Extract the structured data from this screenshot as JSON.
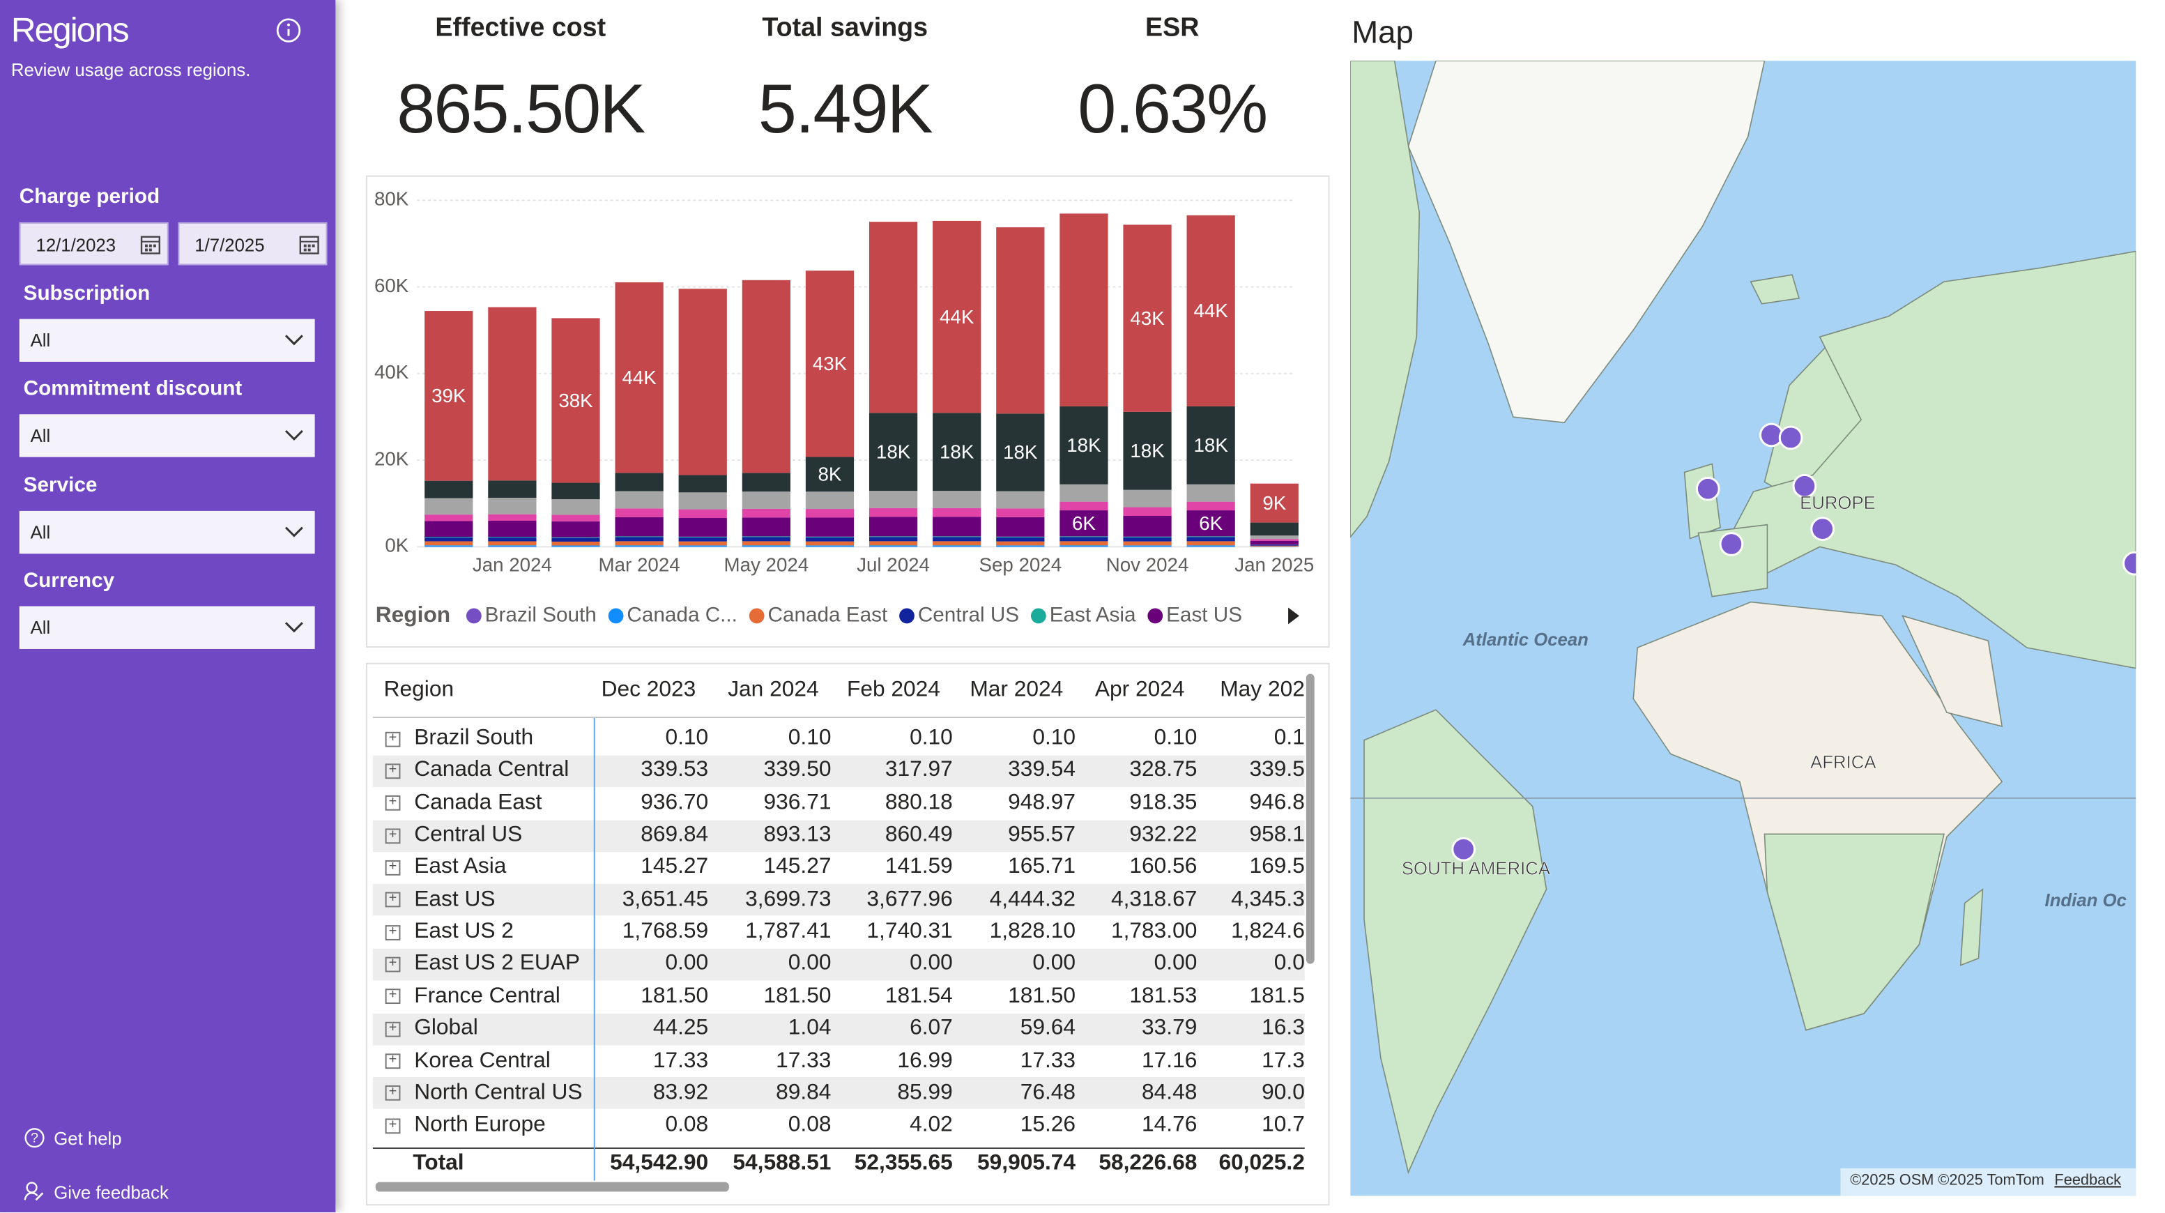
{
  "sidebar": {
    "title": "Regions",
    "subtitle": "Review usage across regions.",
    "charge_period": {
      "label": "Charge period",
      "start": "12/1/2023",
      "end": "1/7/2025"
    },
    "filters": [
      {
        "label": "Subscription",
        "value": "All"
      },
      {
        "label": "Commitment discount",
        "value": "All"
      },
      {
        "label": "Service",
        "value": "All"
      },
      {
        "label": "Currency",
        "value": "All"
      }
    ],
    "links": [
      "Get help",
      "Give feedback"
    ]
  },
  "kpis": [
    {
      "label": "Effective cost",
      "value": "865.50K"
    },
    {
      "label": "Total savings",
      "value": "5.49K"
    },
    {
      "label": "ESR",
      "value": "0.63%"
    }
  ],
  "chart_data": {
    "type": "bar",
    "stacked": true,
    "categories": [
      null,
      "Jan 2024",
      null,
      "Mar 2024",
      null,
      "May 2024",
      null,
      "Jul 2024",
      null,
      "Sep 2024",
      null,
      "Nov 2024",
      null,
      "Jan 2025"
    ],
    "ylim": [
      0,
      80000
    ],
    "yticks": [
      {
        "value": 0,
        "label": "0K"
      },
      {
        "value": 20000,
        "label": "20K"
      },
      {
        "value": 40000,
        "label": "40K"
      },
      {
        "value": 60000,
        "label": "60K"
      },
      {
        "value": 80000,
        "label": "80K"
      }
    ],
    "grid": true,
    "legend_title": "Region",
    "legend": "bottom",
    "series": [
      {
        "name": "Brazil South",
        "color": "#744EC2",
        "values": [
          0.1,
          0.1,
          0.1,
          0.1,
          0.1,
          0.1,
          0.1,
          0.1,
          0.1,
          0.1,
          0.1,
          0.1,
          0.1,
          0.02
        ]
      },
      {
        "name": "Canada C...",
        "color": "#118DFF",
        "values": [
          339.53,
          339.5,
          317.97,
          339.54,
          328.75,
          339.5,
          330,
          340,
          340,
          330,
          340,
          330,
          340,
          60
        ]
      },
      {
        "name": "Canada East",
        "color": "#E66C37",
        "values": [
          936.7,
          936.71,
          880.18,
          948.97,
          918.35,
          946.8,
          920,
          950,
          950,
          920,
          950,
          920,
          950,
          200
        ]
      },
      {
        "name": "Central US",
        "color": "#12239E",
        "values": [
          869.84,
          893.13,
          860.49,
          955.57,
          932.22,
          958.1,
          930,
          960,
          960,
          930,
          960,
          930,
          960,
          200
        ]
      },
      {
        "name": "East Asia",
        "color": "#1AAB9B",
        "values": [
          145.27,
          145.27,
          141.59,
          165.71,
          160.56,
          169.5,
          165,
          170,
          170,
          165,
          170,
          165,
          170,
          40
        ]
      },
      {
        "name": "East US",
        "color": "#6B007B",
        "values": [
          3651.45,
          3699.73,
          3677.96,
          4444.32,
          4318.67,
          4345.3,
          4400,
          4500,
          4500,
          4500,
          6000,
          4800,
          6000,
          900
        ],
        "value_labels": [
          null,
          null,
          null,
          null,
          null,
          null,
          null,
          null,
          null,
          null,
          "6K",
          null,
          "6K",
          null
        ]
      },
      {
        "color": "#E044A7",
        "values": [
          1500,
          1500,
          1500,
          2000,
          2000,
          2000,
          2000,
          2000,
          2000,
          2000,
          2000,
          2000,
          2000,
          400
        ]
      },
      {
        "color": "#A5A5A5",
        "values": [
          3800,
          3800,
          3600,
          4000,
          3900,
          4000,
          4000,
          4000,
          4000,
          4000,
          4000,
          4000,
          4000,
          800
        ]
      },
      {
        "color": "#263436",
        "values": [
          4000,
          4000,
          3800,
          4200,
          4000,
          4300,
          8000,
          18000,
          18000,
          17900,
          18000,
          18000,
          18000,
          3000
        ],
        "value_labels": [
          null,
          null,
          null,
          null,
          null,
          null,
          "8K",
          "18K",
          "18K",
          "18K",
          "18K",
          "18K",
          "18K",
          null
        ]
      },
      {
        "color": "#C4484B",
        "values": [
          39200,
          40000,
          38000,
          44000,
          43000,
          44500,
          43000,
          44100,
          44300,
          43000,
          44500,
          43200,
          44100,
          9000
        ],
        "value_labels": [
          "39K",
          null,
          "38K",
          "44K",
          null,
          null,
          "43K",
          null,
          "44K",
          null,
          null,
          "43K",
          "44K",
          "9K"
        ]
      }
    ]
  },
  "table": {
    "columns": [
      "Region",
      "Dec 2023",
      "Jan 2024",
      "Feb 2024",
      "Mar 2024",
      "Apr 2024",
      "May 202"
    ],
    "rows": [
      [
        "Brazil South",
        "0.10",
        "0.10",
        "0.10",
        "0.10",
        "0.10",
        "0.1"
      ],
      [
        "Canada Central",
        "339.53",
        "339.50",
        "317.97",
        "339.54",
        "328.75",
        "339.5"
      ],
      [
        "Canada East",
        "936.70",
        "936.71",
        "880.18",
        "948.97",
        "918.35",
        "946.8"
      ],
      [
        "Central US",
        "869.84",
        "893.13",
        "860.49",
        "955.57",
        "932.22",
        "958.1"
      ],
      [
        "East Asia",
        "145.27",
        "145.27",
        "141.59",
        "165.71",
        "160.56",
        "169.5"
      ],
      [
        "East US",
        "3,651.45",
        "3,699.73",
        "3,677.96",
        "4,444.32",
        "4,318.67",
        "4,345.3"
      ],
      [
        "East US 2",
        "1,768.59",
        "1,787.41",
        "1,740.31",
        "1,828.10",
        "1,783.00",
        "1,824.6"
      ],
      [
        "East US 2 EUAP",
        "0.00",
        "0.00",
        "0.00",
        "0.00",
        "0.00",
        "0.0"
      ],
      [
        "France Central",
        "181.50",
        "181.50",
        "181.54",
        "181.50",
        "181.53",
        "181.5"
      ],
      [
        "Global",
        "44.25",
        "1.04",
        "6.07",
        "59.64",
        "33.79",
        "16.3"
      ],
      [
        "Korea Central",
        "17.33",
        "17.33",
        "16.99",
        "17.33",
        "17.16",
        "17.3"
      ],
      [
        "North Central US",
        "83.92",
        "89.84",
        "85.99",
        "76.48",
        "84.48",
        "90.0"
      ],
      [
        "North Europe",
        "0.08",
        "0.08",
        "4.02",
        "15.26",
        "14.76",
        "10.7"
      ]
    ],
    "total": [
      "Total",
      "54,542.90",
      "54,588.51",
      "52,355.65",
      "59,905.74",
      "58,226.68",
      "60,025.2"
    ]
  },
  "map": {
    "title": "Map",
    "labels": [
      "Atlantic Ocean",
      "EUROPE",
      "AFRICA",
      "SOUTH AMERICA",
      "Indian Oc"
    ],
    "attribution": "©2025 OSM  ©2025 TomTom",
    "feedback": "Feedback"
  }
}
